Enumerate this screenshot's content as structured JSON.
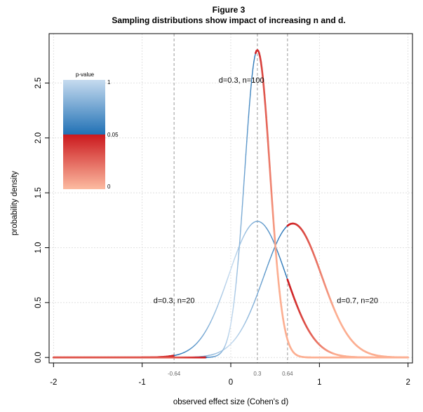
{
  "chart_data": {
    "type": "line",
    "figure_label": "Figure 3",
    "title": "Sampling distributions show impact of increasing n and d.",
    "xlabel": "observed effect size (Cohen's d)",
    "ylabel": "probability density",
    "xlim": [
      -2.05,
      2.05
    ],
    "ylim": [
      -0.05,
      2.95
    ],
    "x_ticks": [
      "-2",
      "-1",
      "0",
      "1",
      "2"
    ],
    "x_tick_values": [
      -2,
      -1,
      0,
      1,
      2
    ],
    "y_ticks": [
      "0.0",
      "0.5",
      "1.0",
      "1.5",
      "2.0",
      "2.5"
    ],
    "y_tick_values": [
      0,
      0.5,
      1.0,
      1.5,
      2.0,
      2.5
    ],
    "grid": true,
    "reference_lines": [
      {
        "x": -0.64,
        "label": "-0.64"
      },
      {
        "x": 0.3,
        "label": "0.3"
      },
      {
        "x": 0.64,
        "label": "0.64"
      }
    ],
    "series": [
      {
        "name": "d=0.3, n=20",
        "d": 0.3,
        "n": 20,
        "peak_density": 1.24,
        "critical_value": 0.64
      },
      {
        "name": "d=0.7, n=20",
        "d": 0.7,
        "n": 20,
        "peak_density": 1.22,
        "critical_value": 0.64
      },
      {
        "name": "d=0.3, n=100",
        "d": 0.3,
        "n": 100,
        "peak_density": 2.8,
        "critical_value": 0.28
      }
    ],
    "annotations": [
      {
        "text": "d=0.3, n=100",
        "x": 0.12,
        "y": 2.53
      },
      {
        "text": "d=0.3, n=20",
        "x": -0.64,
        "y": 0.52
      },
      {
        "text": "d=0.7, n=20",
        "x": 1.43,
        "y": 0.52
      }
    ],
    "legend": {
      "title": "p-value",
      "ticks": [
        "1",
        "0.05",
        "0"
      ],
      "tick_values": [
        1,
        0.05,
        0
      ],
      "placement": "top-left"
    },
    "colors": {
      "p_high": "#c6dbef",
      "p_mid_blue": "#2171b5",
      "p_mid_red": "#cb181d",
      "p_low": "#fcae91",
      "grid": "#d9d9d9",
      "reference": "#999999"
    }
  }
}
